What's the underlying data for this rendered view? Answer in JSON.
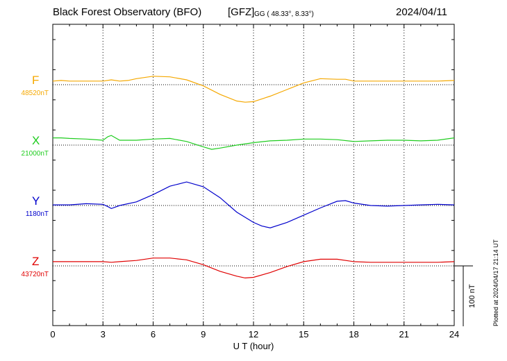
{
  "header": {
    "observatory": "Black Forest Observatory (BFO)",
    "institute": "[GFZ]",
    "coords": "GG ( 48.33°,   8.33°)",
    "date": "2024/04/11"
  },
  "footer_note": "Plotted at 2024/04/17 21:14 UT",
  "colors": {
    "F": "#f5a800",
    "X": "#1ecc1e",
    "Y": "#0000cc",
    "Z": "#e00000"
  },
  "chart_data": {
    "type": "line",
    "xlabel": "U T (hour)",
    "ylabel": "",
    "x_ticks": [
      0,
      3,
      6,
      9,
      12,
      15,
      18,
      21,
      24
    ],
    "xlim": [
      0,
      24
    ],
    "grid": true,
    "scale_bar": {
      "label": "100 nT",
      "value_nT": 100
    },
    "series": [
      {
        "name": "F",
        "baseline_label": "48520nT",
        "baseline_nT": 48520,
        "x": [
          0,
          0.5,
          1,
          2,
          3,
          3.5,
          4,
          4.5,
          5,
          6,
          7,
          8,
          9,
          10,
          11,
          11.5,
          12,
          13,
          14,
          15,
          16,
          17,
          17.5,
          18,
          19,
          20,
          21,
          22,
          23,
          24
        ],
        "values": [
          48526,
          48527,
          48526,
          48526,
          48526,
          48528,
          48526,
          48527,
          48530,
          48534,
          48533,
          48528,
          48518,
          48504,
          48493,
          48491,
          48492,
          48501,
          48512,
          48523,
          48530,
          48529,
          48529,
          48526,
          48526,
          48526,
          48526,
          48526,
          48526,
          48527
        ]
      },
      {
        "name": "X",
        "baseline_label": "21000nT",
        "baseline_nT": 21000,
        "x": [
          0,
          0.5,
          1,
          2,
          3,
          3.3,
          3.5,
          4,
          4.5,
          5,
          6,
          7,
          8,
          9,
          9.5,
          10,
          11,
          12,
          13,
          14,
          15,
          16,
          17,
          18,
          19,
          20,
          21,
          22,
          23,
          24
        ],
        "values": [
          21012,
          21012,
          21011,
          21010,
          21008,
          21014,
          21016,
          21008,
          21008,
          21008,
          21010,
          21011,
          21006,
          20997,
          20993,
          20995,
          21000,
          21004,
          21007,
          21008,
          21010,
          21010,
          21009,
          21006,
          21007,
          21008,
          21008,
          21007,
          21008,
          21012
        ]
      },
      {
        "name": "Y",
        "baseline_label": "1180nT",
        "baseline_nT": 1180,
        "x": [
          0,
          1,
          2,
          3,
          3.3,
          3.5,
          4,
          5,
          6,
          7,
          8,
          9,
          10,
          11,
          12,
          12.5,
          13,
          14,
          15,
          16,
          17,
          17.5,
          18,
          19,
          20,
          21,
          22,
          23,
          24
        ],
        "values": [
          1181,
          1181,
          1183,
          1182,
          1178,
          1175,
          1180,
          1186,
          1198,
          1212,
          1219,
          1211,
          1193,
          1169,
          1152,
          1146,
          1143,
          1152,
          1164,
          1176,
          1187,
          1188,
          1184,
          1180,
          1179,
          1180,
          1181,
          1182,
          1181
        ]
      },
      {
        "name": "Z",
        "baseline_label": "43720nT",
        "baseline_nT": 43720,
        "x": [
          0,
          1,
          2,
          3,
          3.5,
          4,
          5,
          6,
          7,
          8,
          9,
          10,
          11,
          11.5,
          12,
          13,
          14,
          15,
          16,
          17,
          18,
          19,
          20,
          21,
          22,
          23,
          24
        ],
        "values": [
          43727,
          43727,
          43727,
          43727,
          43726,
          43727,
          43729,
          43733,
          43733,
          43730,
          43722,
          43711,
          43703,
          43700,
          43701,
          43709,
          43719,
          43727,
          43731,
          43731,
          43727,
          43726,
          43726,
          43726,
          43726,
          43726,
          43727
        ]
      }
    ]
  }
}
